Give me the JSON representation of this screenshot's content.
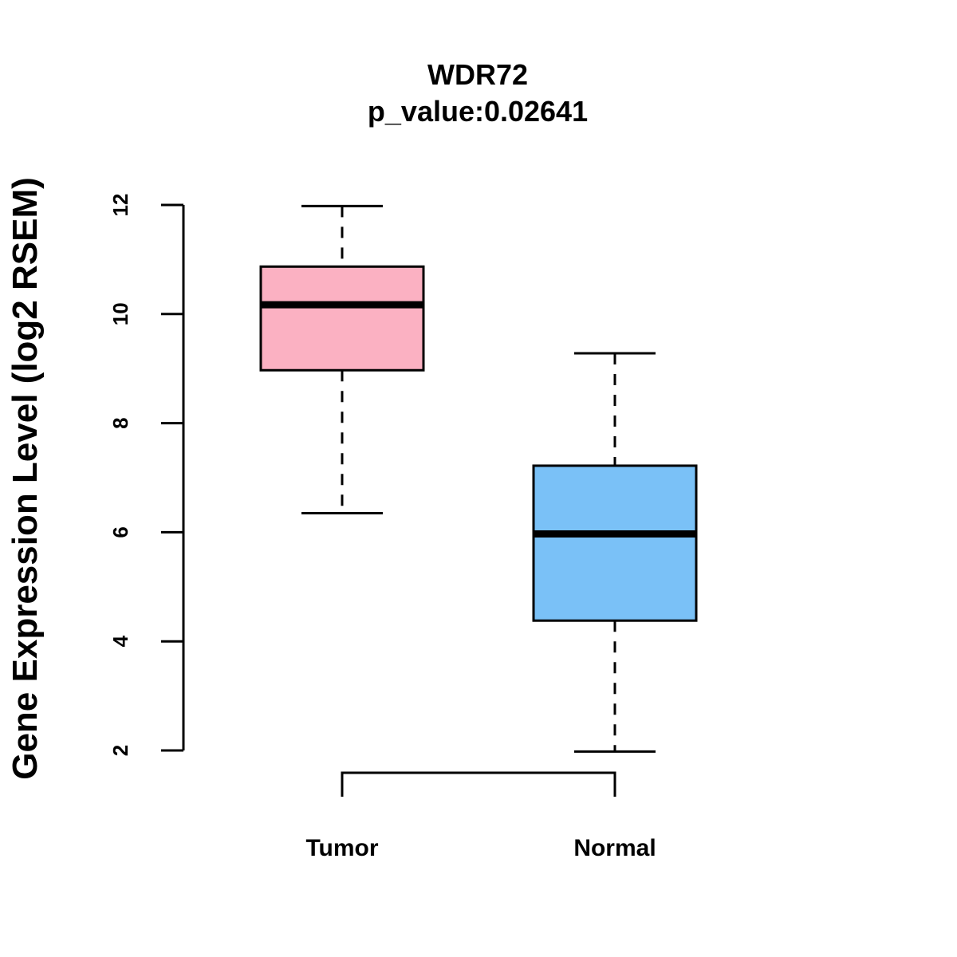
{
  "chart_data": {
    "type": "boxplot",
    "title": "WDR72",
    "subtitle": "p_value:0.02641",
    "xlabel": "",
    "ylabel": "Gene Expression Level (log2 RSEM)",
    "ylim": [
      1.5,
      12.4
    ],
    "yticks": [
      2,
      4,
      6,
      8,
      10,
      12
    ],
    "ytick_labels": [
      "2",
      "4",
      "6",
      "8",
      "10",
      "12"
    ],
    "categories": [
      "Tumor",
      "Normal"
    ],
    "boxes": [
      {
        "name": "Tumor",
        "min": 6.35,
        "q1": 8.97,
        "median": 10.17,
        "q3": 10.87,
        "max": 11.98,
        "color": "#FBB1C2"
      },
      {
        "name": "Normal",
        "min": 1.98,
        "q1": 4.38,
        "median": 5.97,
        "q3": 7.22,
        "max": 9.28,
        "color": "#7AC1F7"
      }
    ],
    "comparison_bracket": {
      "from": "Tumor",
      "to": "Normal"
    },
    "grid": false
  }
}
